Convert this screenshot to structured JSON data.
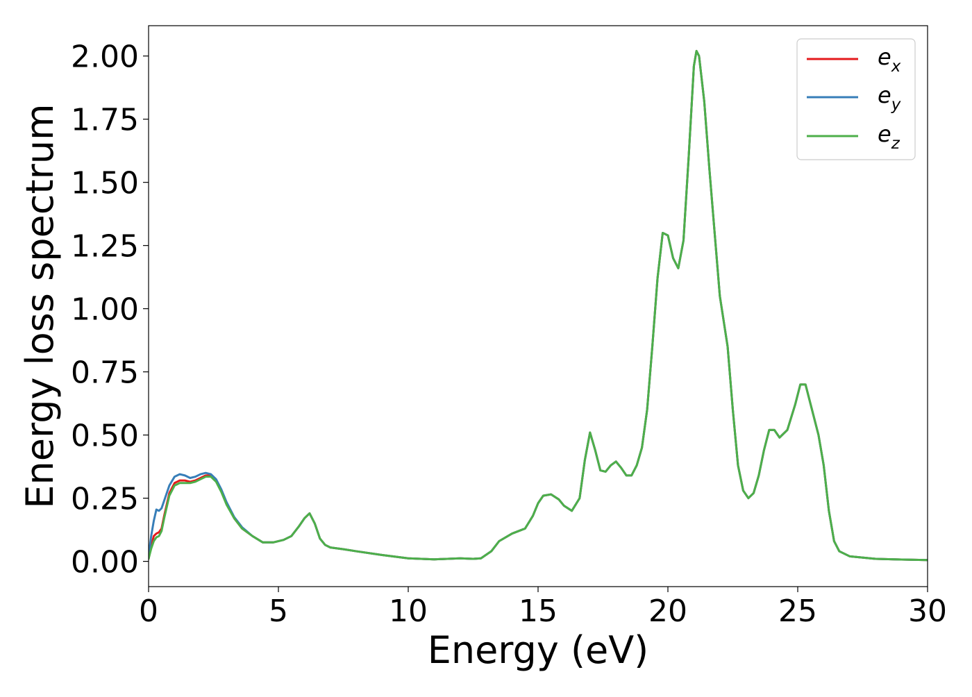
{
  "chart_data": {
    "type": "line",
    "title": "",
    "xlabel": "Energy (eV)",
    "ylabel": "Energy loss spectrum",
    "xlim": [
      0,
      30
    ],
    "ylim": [
      -0.1,
      2.12
    ],
    "xticks": [
      0,
      5,
      10,
      15,
      20,
      25,
      30
    ],
    "yticks": [
      0.0,
      0.25,
      0.5,
      0.75,
      1.0,
      1.25,
      1.5,
      1.75,
      2.0
    ],
    "xtick_labels": [
      "0",
      "5",
      "10",
      "15",
      "20",
      "25",
      "30"
    ],
    "ytick_labels": [
      "0.00",
      "0.25",
      "0.50",
      "0.75",
      "1.00",
      "1.25",
      "1.50",
      "1.75",
      "2.00"
    ],
    "grid": false,
    "legend_position": "top-right",
    "series": [
      {
        "name": "e",
        "subscript": "x",
        "color": "#e41a1c",
        "x": [
          0,
          0.1,
          0.2,
          0.3,
          0.4,
          0.5,
          0.6,
          0.8,
          1.0,
          1.2,
          1.4,
          1.6,
          1.8,
          2.0,
          2.2,
          2.4,
          2.6,
          2.8,
          3.0,
          3.3,
          3.6,
          4.0,
          4.4,
          4.8,
          5.2,
          5.5,
          5.8,
          6.0,
          6.2,
          6.4,
          6.6,
          6.8,
          7.0,
          7.5,
          8.0,
          9.0,
          10.0,
          11.0,
          11.5,
          12.0,
          12.5,
          12.8,
          13.2,
          13.5,
          14.0,
          14.5,
          14.8,
          15.0,
          15.2,
          15.5,
          15.8,
          16.0,
          16.3,
          16.6,
          16.8,
          17.0,
          17.2,
          17.4,
          17.6,
          17.8,
          18.0,
          18.2,
          18.4,
          18.6,
          18.8,
          19.0,
          19.2,
          19.4,
          19.6,
          19.8,
          20.0,
          20.2,
          20.4,
          20.6,
          20.8,
          21.0,
          21.1,
          21.2,
          21.4,
          21.6,
          21.8,
          22.0,
          22.3,
          22.5,
          22.7,
          22.9,
          23.1,
          23.3,
          23.5,
          23.7,
          23.9,
          24.1,
          24.3,
          24.6,
          24.9,
          25.1,
          25.3,
          25.5,
          25.8,
          26.0,
          26.2,
          26.4,
          26.6,
          27.0,
          28.0,
          29.0,
          30.0
        ],
        "values": [
          0.01,
          0.06,
          0.1,
          0.11,
          0.115,
          0.13,
          0.18,
          0.27,
          0.31,
          0.32,
          0.32,
          0.315,
          0.32,
          0.33,
          0.34,
          0.34,
          0.32,
          0.28,
          0.23,
          0.17,
          0.13,
          0.1,
          0.075,
          0.075,
          0.085,
          0.1,
          0.14,
          0.17,
          0.19,
          0.15,
          0.09,
          0.065,
          0.055,
          0.048,
          0.04,
          0.025,
          0.012,
          0.008,
          0.01,
          0.012,
          0.01,
          0.012,
          0.04,
          0.08,
          0.11,
          0.13,
          0.18,
          0.23,
          0.26,
          0.265,
          0.245,
          0.22,
          0.2,
          0.25,
          0.4,
          0.51,
          0.44,
          0.36,
          0.355,
          0.38,
          0.395,
          0.37,
          0.34,
          0.34,
          0.38,
          0.45,
          0.6,
          0.85,
          1.12,
          1.3,
          1.29,
          1.2,
          1.16,
          1.27,
          1.6,
          1.96,
          2.02,
          2.0,
          1.82,
          1.55,
          1.3,
          1.05,
          0.85,
          0.6,
          0.38,
          0.28,
          0.25,
          0.27,
          0.34,
          0.44,
          0.52,
          0.52,
          0.49,
          0.52,
          0.62,
          0.7,
          0.7,
          0.62,
          0.5,
          0.38,
          0.2,
          0.08,
          0.04,
          0.02,
          0.01,
          0.007,
          0.005
        ]
      },
      {
        "name": "e",
        "subscript": "y",
        "color": "#377eb8",
        "x": [
          0,
          0.1,
          0.2,
          0.3,
          0.4,
          0.5,
          0.6,
          0.8,
          1.0,
          1.2,
          1.4,
          1.6,
          1.8,
          2.0,
          2.2,
          2.4,
          2.6,
          2.8,
          3.0,
          3.3,
          3.6,
          4.0,
          4.4,
          4.8,
          5.2,
          5.5,
          5.8,
          6.0,
          6.2,
          6.4,
          6.6,
          6.8,
          7.0,
          7.5,
          8.0,
          9.0,
          10.0,
          11.0,
          11.5,
          12.0,
          12.5,
          12.8,
          13.2,
          13.5,
          14.0,
          14.5,
          14.8,
          15.0,
          15.2,
          15.5,
          15.8,
          16.0,
          16.3,
          16.6,
          16.8,
          17.0,
          17.2,
          17.4,
          17.6,
          17.8,
          18.0,
          18.2,
          18.4,
          18.6,
          18.8,
          19.0,
          19.2,
          19.4,
          19.6,
          19.8,
          20.0,
          20.2,
          20.4,
          20.6,
          20.8,
          21.0,
          21.1,
          21.2,
          21.4,
          21.6,
          21.8,
          22.0,
          22.3,
          22.5,
          22.7,
          22.9,
          23.1,
          23.3,
          23.5,
          23.7,
          23.9,
          24.1,
          24.3,
          24.6,
          24.9,
          25.1,
          25.3,
          25.5,
          25.8,
          26.0,
          26.2,
          26.4,
          26.6,
          27.0,
          28.0,
          29.0,
          30.0
        ],
        "values": [
          0.02,
          0.1,
          0.16,
          0.205,
          0.2,
          0.21,
          0.24,
          0.3,
          0.335,
          0.345,
          0.34,
          0.33,
          0.335,
          0.345,
          0.35,
          0.345,
          0.325,
          0.285,
          0.235,
          0.175,
          0.135,
          0.1,
          0.075,
          0.075,
          0.085,
          0.1,
          0.14,
          0.17,
          0.19,
          0.15,
          0.09,
          0.065,
          0.055,
          0.048,
          0.04,
          0.025,
          0.012,
          0.008,
          0.01,
          0.012,
          0.01,
          0.012,
          0.04,
          0.08,
          0.11,
          0.13,
          0.18,
          0.23,
          0.26,
          0.265,
          0.245,
          0.22,
          0.2,
          0.25,
          0.4,
          0.51,
          0.44,
          0.36,
          0.355,
          0.38,
          0.395,
          0.37,
          0.34,
          0.34,
          0.38,
          0.45,
          0.6,
          0.85,
          1.12,
          1.3,
          1.29,
          1.2,
          1.16,
          1.27,
          1.6,
          1.96,
          2.02,
          2.0,
          1.82,
          1.55,
          1.3,
          1.05,
          0.85,
          0.6,
          0.38,
          0.28,
          0.25,
          0.27,
          0.34,
          0.44,
          0.52,
          0.52,
          0.49,
          0.52,
          0.62,
          0.7,
          0.7,
          0.62,
          0.5,
          0.38,
          0.2,
          0.08,
          0.04,
          0.02,
          0.01,
          0.007,
          0.005
        ]
      },
      {
        "name": "e",
        "subscript": "z",
        "color": "#4daf4a",
        "x": [
          0,
          0.1,
          0.2,
          0.3,
          0.4,
          0.5,
          0.6,
          0.8,
          1.0,
          1.2,
          1.4,
          1.6,
          1.8,
          2.0,
          2.2,
          2.4,
          2.6,
          2.8,
          3.0,
          3.3,
          3.6,
          4.0,
          4.4,
          4.8,
          5.2,
          5.5,
          5.8,
          6.0,
          6.2,
          6.4,
          6.6,
          6.8,
          7.0,
          7.5,
          8.0,
          9.0,
          10.0,
          11.0,
          11.5,
          12.0,
          12.5,
          12.8,
          13.2,
          13.5,
          14.0,
          14.5,
          14.8,
          15.0,
          15.2,
          15.5,
          15.8,
          16.0,
          16.3,
          16.6,
          16.8,
          17.0,
          17.2,
          17.4,
          17.6,
          17.8,
          18.0,
          18.2,
          18.4,
          18.6,
          18.8,
          19.0,
          19.2,
          19.4,
          19.6,
          19.8,
          20.0,
          20.2,
          20.4,
          20.6,
          20.8,
          21.0,
          21.1,
          21.2,
          21.4,
          21.6,
          21.8,
          22.0,
          22.3,
          22.5,
          22.7,
          22.9,
          23.1,
          23.3,
          23.5,
          23.7,
          23.9,
          24.1,
          24.3,
          24.6,
          24.9,
          25.1,
          25.3,
          25.5,
          25.8,
          26.0,
          26.2,
          26.4,
          26.6,
          27.0,
          28.0,
          29.0,
          30.0
        ],
        "values": [
          0.01,
          0.05,
          0.08,
          0.095,
          0.1,
          0.12,
          0.17,
          0.26,
          0.3,
          0.31,
          0.31,
          0.31,
          0.315,
          0.325,
          0.335,
          0.335,
          0.315,
          0.275,
          0.225,
          0.17,
          0.13,
          0.1,
          0.075,
          0.075,
          0.085,
          0.1,
          0.14,
          0.17,
          0.19,
          0.15,
          0.09,
          0.065,
          0.055,
          0.048,
          0.04,
          0.025,
          0.012,
          0.008,
          0.01,
          0.012,
          0.01,
          0.012,
          0.04,
          0.08,
          0.11,
          0.13,
          0.18,
          0.23,
          0.26,
          0.265,
          0.245,
          0.22,
          0.2,
          0.25,
          0.4,
          0.51,
          0.44,
          0.36,
          0.355,
          0.38,
          0.395,
          0.37,
          0.34,
          0.34,
          0.38,
          0.45,
          0.6,
          0.85,
          1.12,
          1.3,
          1.29,
          1.2,
          1.16,
          1.27,
          1.6,
          1.96,
          2.02,
          2.0,
          1.82,
          1.55,
          1.3,
          1.05,
          0.85,
          0.6,
          0.38,
          0.28,
          0.25,
          0.27,
          0.34,
          0.44,
          0.52,
          0.52,
          0.49,
          0.52,
          0.62,
          0.7,
          0.7,
          0.62,
          0.5,
          0.38,
          0.2,
          0.08,
          0.04,
          0.02,
          0.01,
          0.007,
          0.005
        ]
      }
    ]
  }
}
